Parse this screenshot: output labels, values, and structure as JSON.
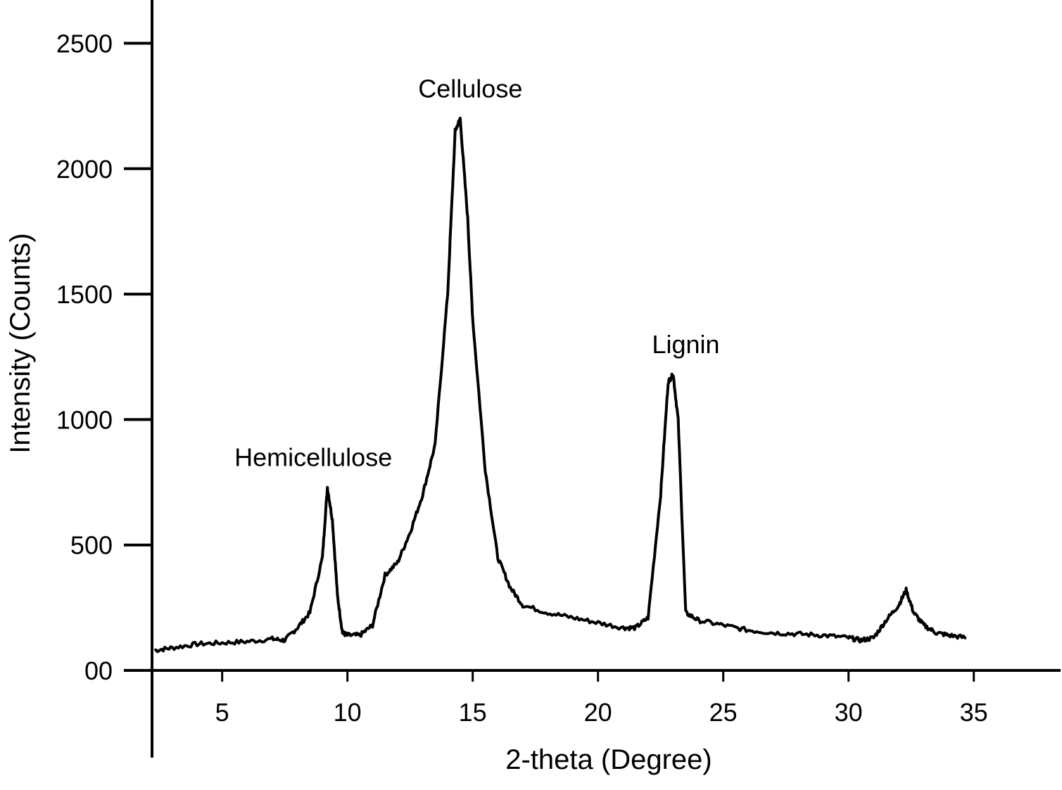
{
  "chart_data": {
    "type": "line",
    "title": "",
    "xlabel": "2-theta (Degree)",
    "ylabel": "Intensity (Counts)",
    "xlim": [
      2.2,
      38
    ],
    "ylim": [
      0,
      2600
    ],
    "x_ticks": [
      5,
      10,
      15,
      20,
      25,
      30,
      35
    ],
    "x_tick_labels": [
      "5",
      "10",
      "15",
      "20",
      "25",
      "30",
      "35"
    ],
    "y_ticks": [
      0,
      500,
      1000,
      1500,
      2000,
      2500
    ],
    "y_tick_labels": [
      "00",
      "500",
      "1000",
      "1500",
      "2000",
      "2500"
    ],
    "grid": false,
    "legend": "none",
    "colors": {
      "line": "#000000",
      "axis": "#000000"
    },
    "series": [
      {
        "x": [
          2.3,
          3,
          4,
          5,
          6,
          7,
          7.5,
          8,
          8.5,
          9,
          9.2,
          9.4,
          9.6,
          9.8,
          10,
          10.5,
          11,
          11.5,
          12,
          12.5,
          13,
          13.5,
          14,
          14.3,
          14.5,
          14.8,
          15,
          15.5,
          16,
          16.5,
          17,
          18,
          19,
          20,
          21,
          21.5,
          22,
          22.5,
          22.8,
          23,
          23.2,
          23.5,
          24,
          25,
          26,
          27,
          28,
          29,
          30,
          30.5,
          31,
          31.5,
          32,
          32.3,
          32.6,
          33,
          33.5,
          34,
          34.7
        ],
        "y": [
          80,
          90,
          105,
          110,
          115,
          125,
          120,
          170,
          230,
          450,
          730,
          600,
          300,
          150,
          140,
          140,
          180,
          380,
          430,
          550,
          700,
          900,
          1500,
          2150,
          2200,
          1800,
          1400,
          800,
          450,
          330,
          260,
          230,
          210,
          190,
          170,
          170,
          210,
          700,
          1150,
          1180,
          1000,
          230,
          200,
          180,
          160,
          150,
          145,
          140,
          130,
          120,
          130,
          200,
          260,
          320,
          230,
          180,
          150,
          140,
          130
        ]
      }
    ],
    "annotations": [
      {
        "text": "Hemicellulose",
        "x": 9.2,
        "y": 730
      },
      {
        "text": "Cellulose",
        "x": 14.4,
        "y": 2200
      },
      {
        "text": "Lignin",
        "x": 23.0,
        "y": 1180
      }
    ]
  }
}
